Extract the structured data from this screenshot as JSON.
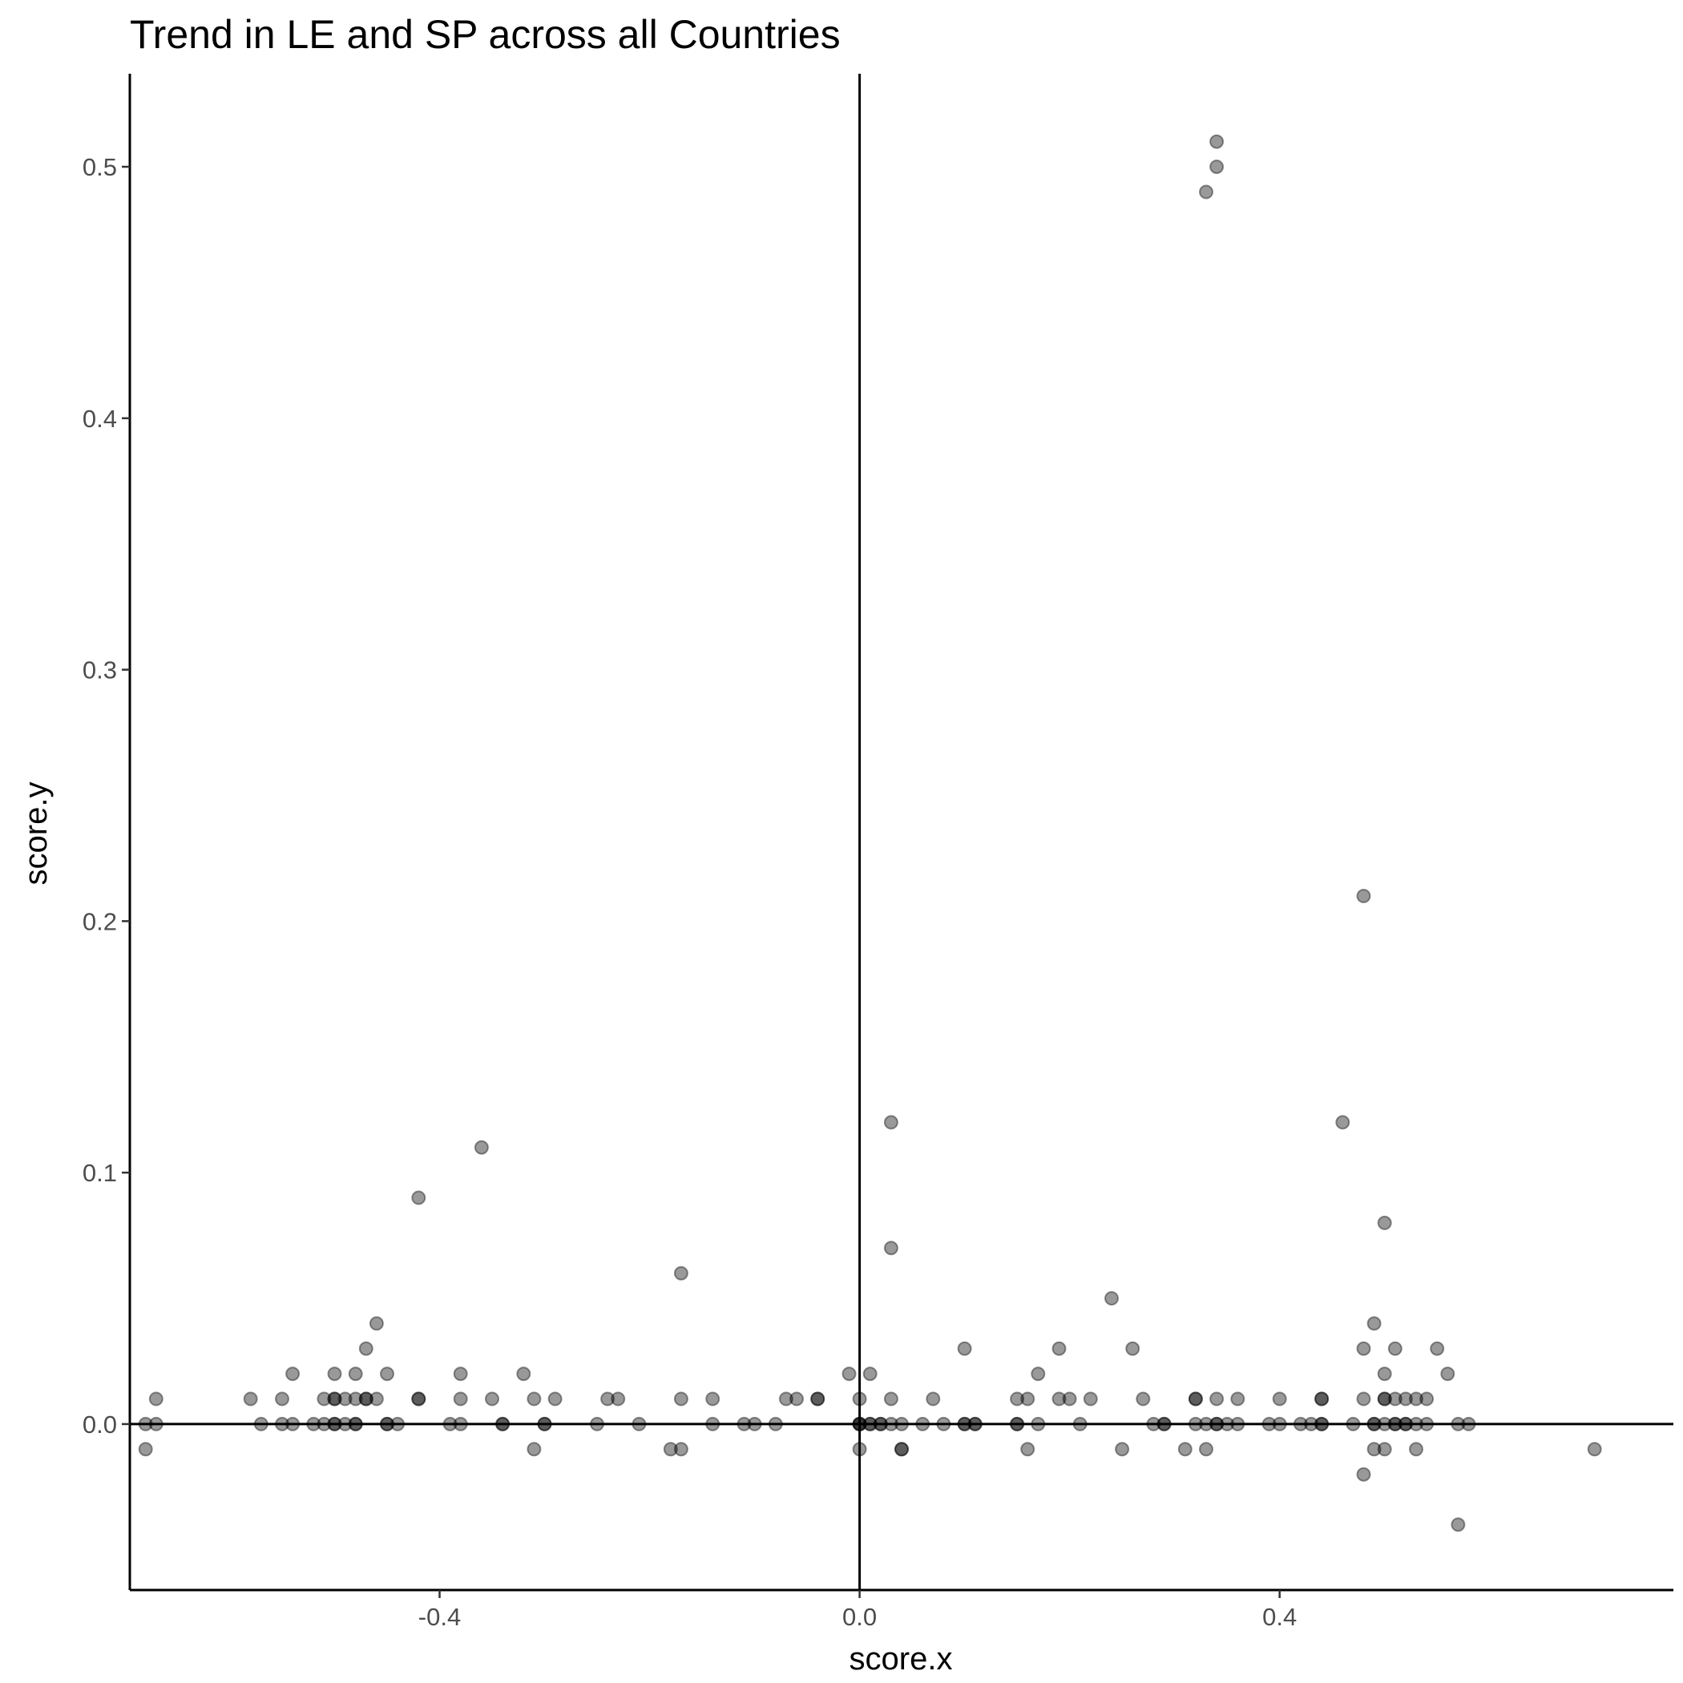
{
  "chart_data": {
    "type": "scatter",
    "title": "Trend in LE and SP across all Countries",
    "xlabel": "score.x",
    "ylabel": "score.y",
    "xlim": [
      -0.695,
      0.775
    ],
    "ylim": [
      -0.066,
      0.537
    ],
    "xticks": [
      -0.4,
      0.0,
      0.4
    ],
    "xtick_labels": [
      "-0.4",
      "0.0",
      "0.4"
    ],
    "yticks": [
      0.0,
      0.1,
      0.2,
      0.3,
      0.4,
      0.5
    ],
    "ytick_labels": [
      "0.0",
      "0.1",
      "0.2",
      "0.3",
      "0.4",
      "0.5"
    ],
    "reference_lines": {
      "x": 0.0,
      "y": 0.0
    },
    "grid": false,
    "point_color": "#000000",
    "point_opacity": 0.4,
    "points": [
      [
        -0.68,
        0.0
      ],
      [
        -0.67,
        0.0
      ],
      [
        -0.67,
        0.01
      ],
      [
        -0.68,
        -0.01
      ],
      [
        -0.58,
        0.01
      ],
      [
        -0.57,
        0.0
      ],
      [
        -0.55,
        0.01
      ],
      [
        -0.55,
        0.0
      ],
      [
        -0.54,
        0.02
      ],
      [
        -0.54,
        0.0
      ],
      [
        -0.52,
        0.0
      ],
      [
        -0.51,
        0.01
      ],
      [
        -0.51,
        0.0
      ],
      [
        -0.5,
        0.02
      ],
      [
        -0.5,
        0.01
      ],
      [
        -0.5,
        0.01
      ],
      [
        -0.5,
        0.0
      ],
      [
        -0.5,
        0.0
      ],
      [
        -0.49,
        0.01
      ],
      [
        -0.49,
        0.0
      ],
      [
        -0.48,
        0.02
      ],
      [
        -0.48,
        0.01
      ],
      [
        -0.48,
        0.0
      ],
      [
        -0.48,
        0.0
      ],
      [
        -0.47,
        0.03
      ],
      [
        -0.47,
        0.01
      ],
      [
        -0.47,
        0.01
      ],
      [
        -0.46,
        0.04
      ],
      [
        -0.46,
        0.01
      ],
      [
        -0.45,
        0.02
      ],
      [
        -0.45,
        0.0
      ],
      [
        -0.45,
        0.0
      ],
      [
        -0.44,
        0.0
      ],
      [
        -0.42,
        0.09
      ],
      [
        -0.42,
        0.01
      ],
      [
        -0.42,
        0.01
      ],
      [
        -0.39,
        0.0
      ],
      [
        -0.38,
        0.02
      ],
      [
        -0.38,
        0.01
      ],
      [
        -0.38,
        0.0
      ],
      [
        -0.36,
        0.11
      ],
      [
        -0.35,
        0.01
      ],
      [
        -0.34,
        0.0
      ],
      [
        -0.34,
        0.0
      ],
      [
        -0.32,
        0.02
      ],
      [
        -0.31,
        0.01
      ],
      [
        -0.31,
        -0.01
      ],
      [
        -0.3,
        0.0
      ],
      [
        -0.3,
        0.0
      ],
      [
        -0.29,
        0.01
      ],
      [
        -0.25,
        0.0
      ],
      [
        -0.24,
        0.01
      ],
      [
        -0.23,
        0.01
      ],
      [
        -0.21,
        0.0
      ],
      [
        -0.18,
        -0.01
      ],
      [
        -0.17,
        0.06
      ],
      [
        -0.17,
        0.01
      ],
      [
        -0.17,
        -0.01
      ],
      [
        -0.14,
        0.01
      ],
      [
        -0.14,
        0.0
      ],
      [
        -0.11,
        0.0
      ],
      [
        -0.1,
        0.0
      ],
      [
        -0.08,
        0.0
      ],
      [
        -0.07,
        0.01
      ],
      [
        -0.06,
        0.01
      ],
      [
        -0.04,
        0.01
      ],
      [
        -0.04,
        0.01
      ],
      [
        -0.01,
        0.02
      ],
      [
        0.0,
        0.01
      ],
      [
        0.0,
        0.0
      ],
      [
        0.0,
        0.0
      ],
      [
        0.0,
        0.0
      ],
      [
        0.0,
        -0.01
      ],
      [
        0.01,
        0.02
      ],
      [
        0.01,
        0.0
      ],
      [
        0.01,
        0.0
      ],
      [
        0.02,
        0.0
      ],
      [
        0.02,
        0.0
      ],
      [
        0.03,
        0.12
      ],
      [
        0.03,
        0.07
      ],
      [
        0.03,
        0.01
      ],
      [
        0.03,
        0.0
      ],
      [
        0.04,
        0.0
      ],
      [
        0.04,
        -0.01
      ],
      [
        0.04,
        -0.01
      ],
      [
        0.06,
        0.0
      ],
      [
        0.07,
        0.01
      ],
      [
        0.08,
        0.0
      ],
      [
        0.1,
        0.03
      ],
      [
        0.1,
        0.0
      ],
      [
        0.1,
        0.0
      ],
      [
        0.11,
        0.0
      ],
      [
        0.11,
        0.0
      ],
      [
        0.15,
        0.01
      ],
      [
        0.15,
        0.0
      ],
      [
        0.15,
        0.0
      ],
      [
        0.16,
        0.01
      ],
      [
        0.16,
        -0.01
      ],
      [
        0.17,
        0.02
      ],
      [
        0.17,
        0.0
      ],
      [
        0.19,
        0.03
      ],
      [
        0.19,
        0.01
      ],
      [
        0.2,
        0.01
      ],
      [
        0.21,
        0.0
      ],
      [
        0.22,
        0.01
      ],
      [
        0.24,
        0.05
      ],
      [
        0.25,
        -0.01
      ],
      [
        0.26,
        0.03
      ],
      [
        0.27,
        0.01
      ],
      [
        0.28,
        0.0
      ],
      [
        0.29,
        0.0
      ],
      [
        0.29,
        0.0
      ],
      [
        0.31,
        -0.01
      ],
      [
        0.32,
        0.01
      ],
      [
        0.32,
        0.01
      ],
      [
        0.32,
        0.0
      ],
      [
        0.33,
        0.49
      ],
      [
        0.33,
        0.0
      ],
      [
        0.33,
        -0.01
      ],
      [
        0.34,
        0.51
      ],
      [
        0.34,
        0.5
      ],
      [
        0.34,
        0.01
      ],
      [
        0.34,
        0.0
      ],
      [
        0.34,
        0.0
      ],
      [
        0.35,
        0.0
      ],
      [
        0.36,
        0.01
      ],
      [
        0.36,
        0.0
      ],
      [
        0.39,
        0.0
      ],
      [
        0.4,
        0.01
      ],
      [
        0.4,
        0.0
      ],
      [
        0.42,
        0.0
      ],
      [
        0.43,
        0.0
      ],
      [
        0.44,
        0.01
      ],
      [
        0.44,
        0.01
      ],
      [
        0.44,
        0.0
      ],
      [
        0.44,
        0.0
      ],
      [
        0.46,
        0.12
      ],
      [
        0.47,
        0.0
      ],
      [
        0.48,
        0.21
      ],
      [
        0.48,
        0.03
      ],
      [
        0.48,
        0.01
      ],
      [
        0.48,
        -0.02
      ],
      [
        0.49,
        0.04
      ],
      [
        0.49,
        0.0
      ],
      [
        0.49,
        0.0
      ],
      [
        0.49,
        -0.01
      ],
      [
        0.5,
        0.08
      ],
      [
        0.5,
        0.02
      ],
      [
        0.5,
        0.01
      ],
      [
        0.5,
        0.01
      ],
      [
        0.5,
        0.0
      ],
      [
        0.5,
        -0.01
      ],
      [
        0.51,
        0.03
      ],
      [
        0.51,
        0.01
      ],
      [
        0.51,
        0.0
      ],
      [
        0.51,
        0.0
      ],
      [
        0.52,
        0.01
      ],
      [
        0.52,
        0.0
      ],
      [
        0.52,
        0.0
      ],
      [
        0.53,
        0.01
      ],
      [
        0.53,
        0.0
      ],
      [
        0.53,
        -0.01
      ],
      [
        0.54,
        0.01
      ],
      [
        0.54,
        0.0
      ],
      [
        0.55,
        0.03
      ],
      [
        0.56,
        0.02
      ],
      [
        0.57,
        0.0
      ],
      [
        0.57,
        -0.04
      ],
      [
        0.58,
        0.0
      ],
      [
        0.7,
        -0.01
      ]
    ]
  }
}
